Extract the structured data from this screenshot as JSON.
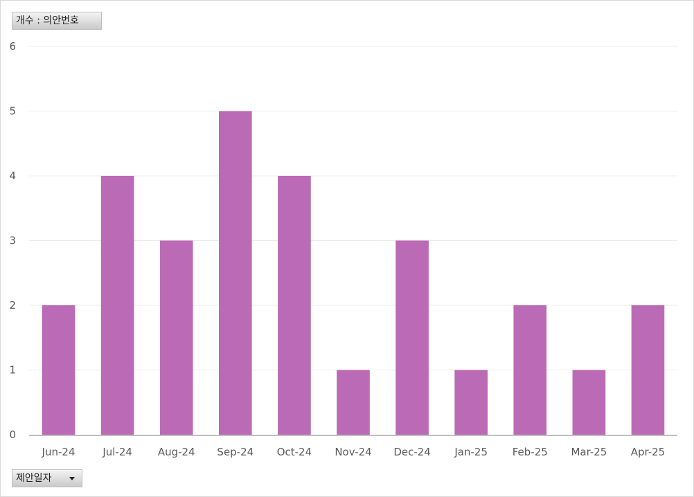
{
  "chart_data": {
    "type": "bar",
    "categories": [
      "Jun-24",
      "Jul-24",
      "Aug-24",
      "Sep-24",
      "Oct-24",
      "Nov-24",
      "Dec-24",
      "Jan-25",
      "Feb-25",
      "Mar-25",
      "Apr-25"
    ],
    "values": [
      2,
      4,
      3,
      5,
      4,
      1,
      3,
      1,
      2,
      1,
      2
    ],
    "ylim": [
      0,
      6
    ],
    "yticks": [
      0,
      1,
      2,
      3,
      4,
      5,
      6
    ],
    "grid": true,
    "bar_color": "#bb6bb5"
  },
  "pivot": {
    "values_field_label": "개수 : 의안번호",
    "axis_field_label": "제안일자"
  },
  "icons": {
    "axis_dropdown": "dropdown-arrow-icon"
  }
}
